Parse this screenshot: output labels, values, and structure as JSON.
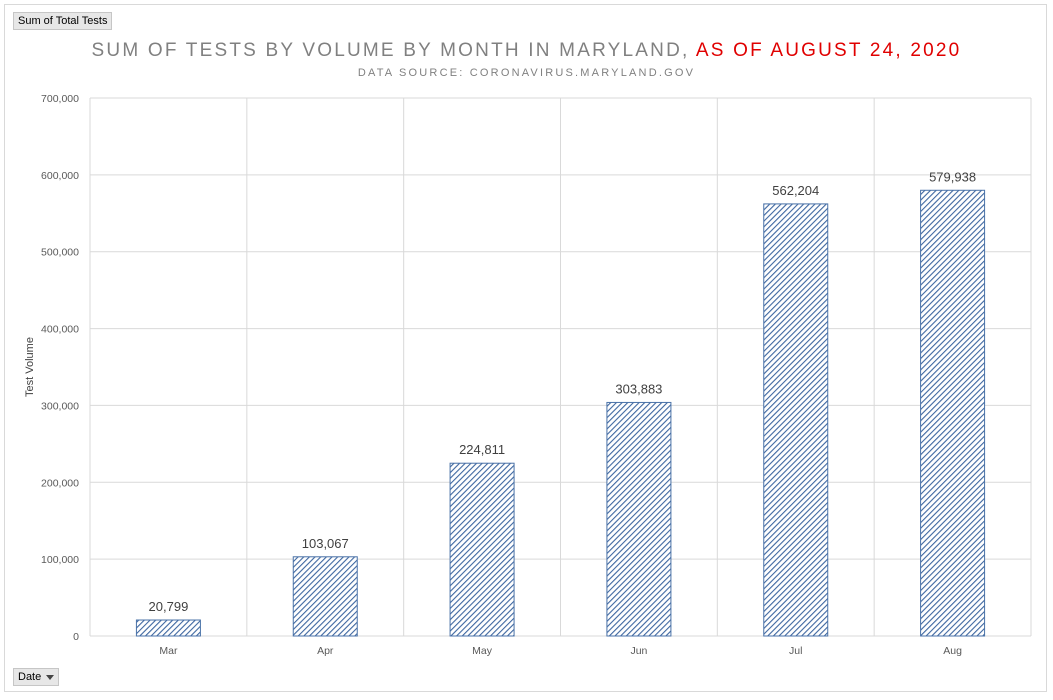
{
  "pivot": {
    "value_field": "Sum of Total Tests",
    "axis_field": "Date"
  },
  "chart_data": {
    "type": "bar",
    "title_main": "SUM OF TESTS BY VOLUME BY MONTH IN MARYLAND,",
    "title_accent": "AS OF AUGUST 24, 2020",
    "subtitle": "DATA SOURCE: CORONAVIRUS.MARYLAND.GOV",
    "xlabel": "",
    "ylabel": "Test Volume",
    "categories": [
      "Mar",
      "Apr",
      "May",
      "Jun",
      "Jul",
      "Aug"
    ],
    "values": [
      20799,
      103067,
      224811,
      303883,
      562204,
      579938
    ],
    "value_labels": [
      "20,799",
      "103,067",
      "224,811",
      "303,883",
      "562,204",
      "579,938"
    ],
    "ylim": [
      0,
      700000
    ],
    "yticks": [
      0,
      100000,
      200000,
      300000,
      400000,
      500000,
      600000,
      700000
    ],
    "ytick_labels": [
      "0",
      "100,000",
      "200,000",
      "300,000",
      "400,000",
      "500,000",
      "600,000",
      "700,000"
    ],
    "grid": true,
    "legend": "none",
    "colors": {
      "bar_stroke": "#4a72a8",
      "bar_hatch": "#3d66a0",
      "grid": "#d9d9d9",
      "accent": "#e00000"
    }
  }
}
